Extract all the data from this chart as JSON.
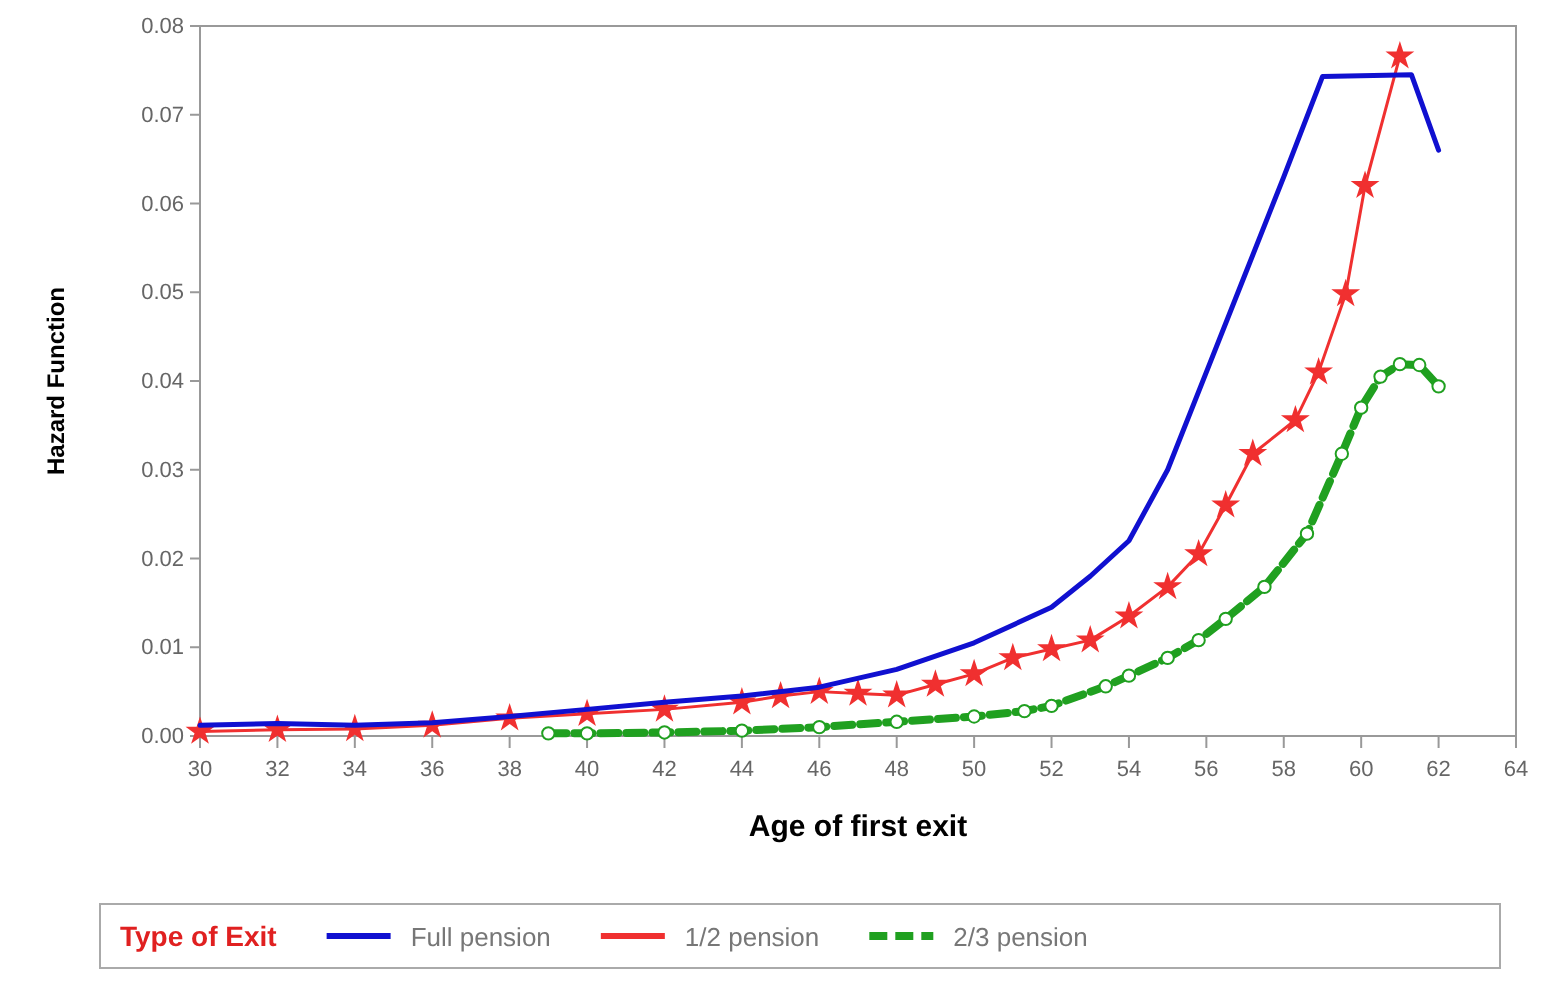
{
  "chart_data": {
    "type": "line",
    "xlabel": "Age of first exit",
    "ylabel": "Hazard Function",
    "legend_title": "Type of Exit",
    "legend": "bottom",
    "grid": false,
    "xlim": [
      30,
      64
    ],
    "xticks": [
      30,
      32,
      34,
      36,
      38,
      40,
      42,
      44,
      46,
      48,
      50,
      52,
      54,
      56,
      58,
      60,
      62,
      64
    ],
    "ylim": [
      0,
      0.08
    ],
    "yticks": [
      {
        "value": 0,
        "label": "0.00"
      },
      {
        "value": 0.01,
        "label": "0.01"
      },
      {
        "value": 0.02,
        "label": "0.02"
      },
      {
        "value": 0.03,
        "label": "0.03"
      },
      {
        "value": 0.04,
        "label": "0.04"
      },
      {
        "value": 0.05,
        "label": "0.05"
      },
      {
        "value": 0.06,
        "label": "0.06"
      },
      {
        "value": 0.07,
        "label": "0.07"
      },
      {
        "value": 0.08,
        "label": "0.08"
      }
    ],
    "series": [
      {
        "name": "Full pension",
        "color": "#1010d0",
        "marker": "none",
        "line_style": "solid",
        "x": [
          30,
          32,
          34,
          36,
          38,
          40,
          42,
          44,
          46,
          48,
          50,
          52,
          53,
          54,
          55,
          56,
          57,
          58,
          59,
          61.3,
          62
        ],
        "values": [
          0.0012,
          0.0014,
          0.0012,
          0.0015,
          0.0022,
          0.003,
          0.0038,
          0.0045,
          0.0055,
          0.0075,
          0.0105,
          0.0145,
          0.018,
          0.022,
          0.03,
          0.041,
          0.052,
          0.063,
          0.0743,
          0.0745,
          0.066
        ]
      },
      {
        "name": "1/2 pension",
        "color": "#f03030",
        "marker": "star",
        "line_style": "solid",
        "x": [
          30,
          32,
          34,
          36,
          38,
          40,
          42,
          44,
          45,
          46,
          47,
          48,
          49,
          50,
          51,
          52,
          53,
          54,
          55,
          55.8,
          56.5,
          57.2,
          58.3,
          58.9,
          59.6,
          60.1,
          61
        ],
        "values": [
          0.0005,
          0.0007,
          0.0008,
          0.0012,
          0.002,
          0.0025,
          0.003,
          0.0038,
          0.0045,
          0.005,
          0.0048,
          0.0046,
          0.0058,
          0.007,
          0.0088,
          0.0098,
          0.0108,
          0.0135,
          0.0168,
          0.0205,
          0.026,
          0.0318,
          0.0356,
          0.041,
          0.0498,
          0.062,
          0.0766
        ]
      },
      {
        "name": "2/3 pension",
        "color": "#20a020",
        "marker": "circle",
        "line_style": "dashed",
        "x": [
          39,
          40,
          42,
          44,
          46,
          48,
          50,
          51.3,
          52,
          53.4,
          54,
          55,
          55.8,
          56.5,
          57.5,
          58.6,
          59.5,
          60,
          60.5,
          61,
          61.5,
          62
        ],
        "values": [
          0.0003,
          0.0003,
          0.0004,
          0.0006,
          0.001,
          0.0016,
          0.0022,
          0.0028,
          0.0034,
          0.0056,
          0.0068,
          0.0088,
          0.0108,
          0.0132,
          0.0168,
          0.0228,
          0.0318,
          0.037,
          0.0405,
          0.0419,
          0.0418,
          0.0394
        ]
      }
    ]
  }
}
